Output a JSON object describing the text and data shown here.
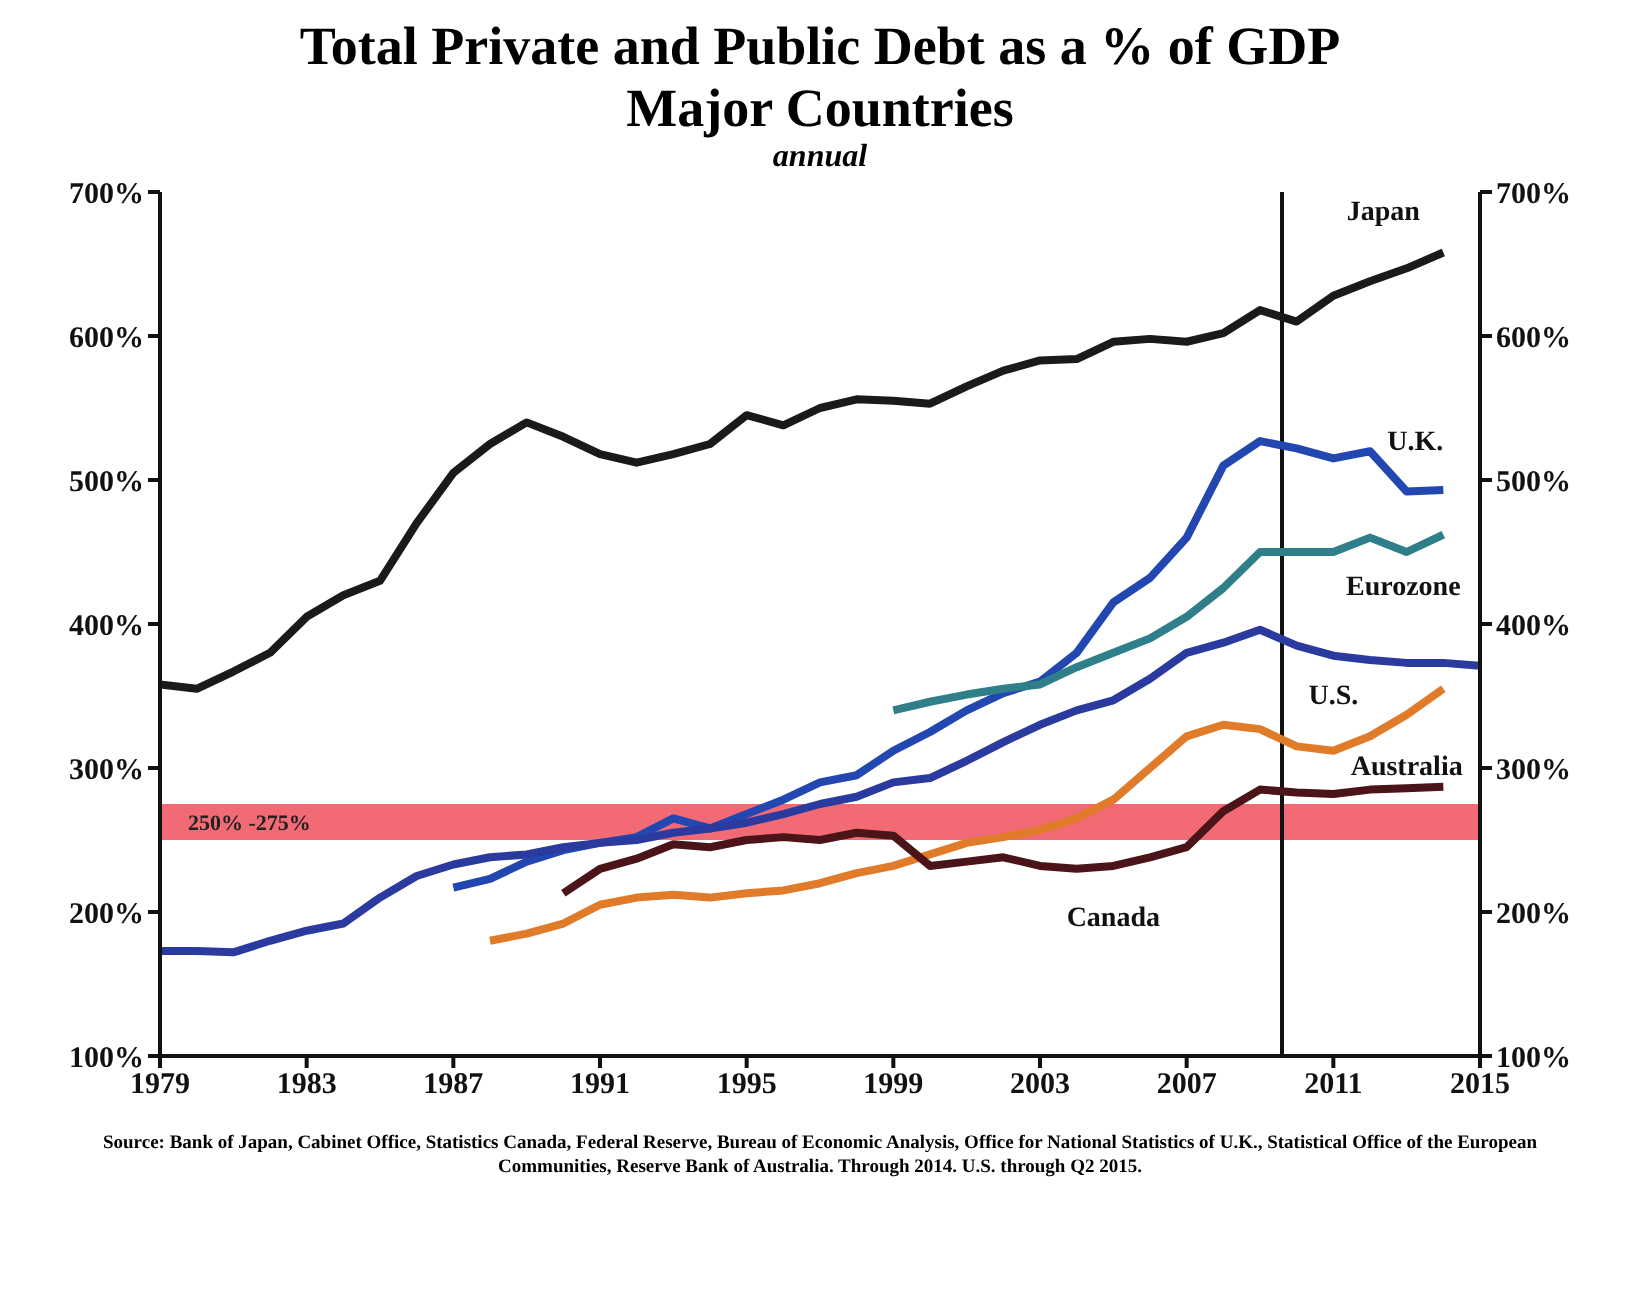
{
  "chart_data": {
    "type": "line",
    "title": "Total Private and Public Debt as a % of GDP\nMajor Countries",
    "subtitle": "annual",
    "annotations": [
      "Source: Bank of Japan, Cabinet Office, Statistics Canada, Federal Reserve, Bureau of Economic Analysis, Office for National Statistics of U.K., Statistical Office of the European Communities, Reserve Bank of Australia. Through 2014. U.S. through Q2 2015."
    ],
    "series": [
      {
        "name": "Japan",
        "color": "#1a1a1a",
        "x": [
          1979,
          1980,
          1981,
          1982,
          1983,
          1984,
          1985,
          1986,
          1987,
          1988,
          1989,
          1990,
          1991,
          1992,
          1993,
          1994,
          1995,
          1996,
          1997,
          1998,
          1999,
          2000,
          2001,
          2002,
          2003,
          2004,
          2005,
          2006,
          2007,
          2008,
          2009,
          2010,
          2011,
          2012,
          2013,
          2014
        ],
        "values": [
          358,
          355,
          367,
          380,
          405,
          420,
          430,
          470,
          505,
          525,
          540,
          530,
          518,
          512,
          518,
          525,
          545,
          538,
          550,
          556,
          555,
          553,
          565,
          576,
          583,
          584,
          596,
          598,
          596,
          602,
          618,
          610,
          628,
          638,
          647,
          658
        ]
      },
      {
        "name": "U.K.",
        "color": "#2247b0",
        "x": [
          1987,
          1988,
          1989,
          1990,
          1991,
          1992,
          1993,
          1994,
          1995,
          1996,
          1997,
          1998,
          1999,
          2000,
          2001,
          2002,
          2003,
          2004,
          2005,
          2006,
          2007,
          2008,
          2009,
          2010,
          2011,
          2012,
          2013,
          2014
        ],
        "values": [
          217,
          223,
          235,
          243,
          248,
          252,
          265,
          258,
          268,
          278,
          290,
          295,
          312,
          325,
          340,
          352,
          360,
          380,
          415,
          432,
          460,
          510,
          527,
          522,
          515,
          520,
          492,
          493
        ]
      },
      {
        "name": "Eurozone",
        "color": "#2e7f8a",
        "x": [
          1999,
          2000,
          2001,
          2002,
          2003,
          2004,
          2005,
          2006,
          2007,
          2008,
          2009,
          2010,
          2011,
          2012,
          2013,
          2014
        ],
        "values": [
          340,
          346,
          351,
          355,
          358,
          370,
          380,
          390,
          405,
          425,
          450,
          450,
          450,
          460,
          450,
          462
        ]
      },
      {
        "name": "U.S.",
        "color": "#2a3a9e",
        "x": [
          1979,
          1980,
          1981,
          1982,
          1983,
          1984,
          1985,
          1986,
          1987,
          1988,
          1989,
          1990,
          1991,
          1992,
          1993,
          1994,
          1995,
          1996,
          1997,
          1998,
          1999,
          2000,
          2001,
          2002,
          2003,
          2004,
          2005,
          2006,
          2007,
          2008,
          2009,
          2010,
          2011,
          2012,
          2013,
          2014,
          2015
        ],
        "values": [
          173,
          173,
          172,
          180,
          187,
          192,
          210,
          225,
          233,
          238,
          240,
          245,
          248,
          250,
          255,
          258,
          262,
          268,
          275,
          280,
          290,
          293,
          305,
          318,
          330,
          340,
          347,
          362,
          380,
          387,
          396,
          385,
          378,
          375,
          373,
          373,
          371
        ]
      },
      {
        "name": "Australia",
        "color": "#e07b2a",
        "x": [
          1988,
          1989,
          1990,
          1991,
          1992,
          1993,
          1994,
          1995,
          1996,
          1997,
          1998,
          1999,
          2000,
          2001,
          2002,
          2003,
          2004,
          2005,
          2006,
          2007,
          2008,
          2009,
          2010,
          2011,
          2012,
          2013,
          2014
        ],
        "values": [
          180,
          185,
          192,
          205,
          210,
          212,
          210,
          213,
          215,
          220,
          227,
          232,
          240,
          248,
          252,
          257,
          265,
          278,
          300,
          322,
          330,
          327,
          315,
          312,
          322,
          337,
          355
        ]
      },
      {
        "name": "Canada",
        "color": "#4a1418",
        "x": [
          1990,
          1991,
          1992,
          1993,
          1994,
          1995,
          1996,
          1997,
          1998,
          1999,
          2000,
          2001,
          2002,
          2003,
          2004,
          2005,
          2006,
          2007,
          2008,
          2009,
          2010,
          2011,
          2012,
          2013,
          2014
        ],
        "values": [
          213,
          230,
          237,
          247,
          245,
          250,
          252,
          250,
          255,
          253,
          232,
          235,
          238,
          232,
          230,
          232,
          238,
          245,
          270,
          285,
          283,
          282,
          285,
          286,
          287
        ]
      }
    ],
    "xlim": [
      1979,
      2015
    ],
    "xticks": [
      1979,
      1983,
      1987,
      1991,
      1995,
      1999,
      2003,
      2007,
      2011,
      2015
    ],
    "ylim": [
      100,
      700
    ],
    "yticks": [
      {
        "value": 100,
        "label": "100%"
      },
      {
        "value": 200,
        "label": "200%"
      },
      {
        "value": 300,
        "label": "300%"
      },
      {
        "value": 400,
        "label": "400%"
      },
      {
        "value": 500,
        "label": "500%"
      },
      {
        "value": 600,
        "label": "600%"
      },
      {
        "value": 700,
        "label": "700%"
      }
    ],
    "y2lim": [
      100,
      700
    ],
    "y2ticks": [
      {
        "value": 100,
        "label": "100%"
      },
      {
        "value": 200,
        "label": "200%"
      },
      {
        "value": 300,
        "label": "300%"
      },
      {
        "value": 400,
        "label": "400%"
      },
      {
        "value": 500,
        "label": "500%"
      },
      {
        "value": 600,
        "label": "600%"
      },
      {
        "value": 700,
        "label": "700%"
      }
    ],
    "bands": [
      {
        "axis": "y",
        "from": 250,
        "to": 275,
        "label": "250% -275%",
        "color": "#f26a74"
      }
    ],
    "ref_lines": [
      {
        "axis": "x",
        "value": 2009.6,
        "color": "#111111"
      }
    ],
    "grid": false,
    "legend": false,
    "marker": "none",
    "line_style": "solid"
  }
}
